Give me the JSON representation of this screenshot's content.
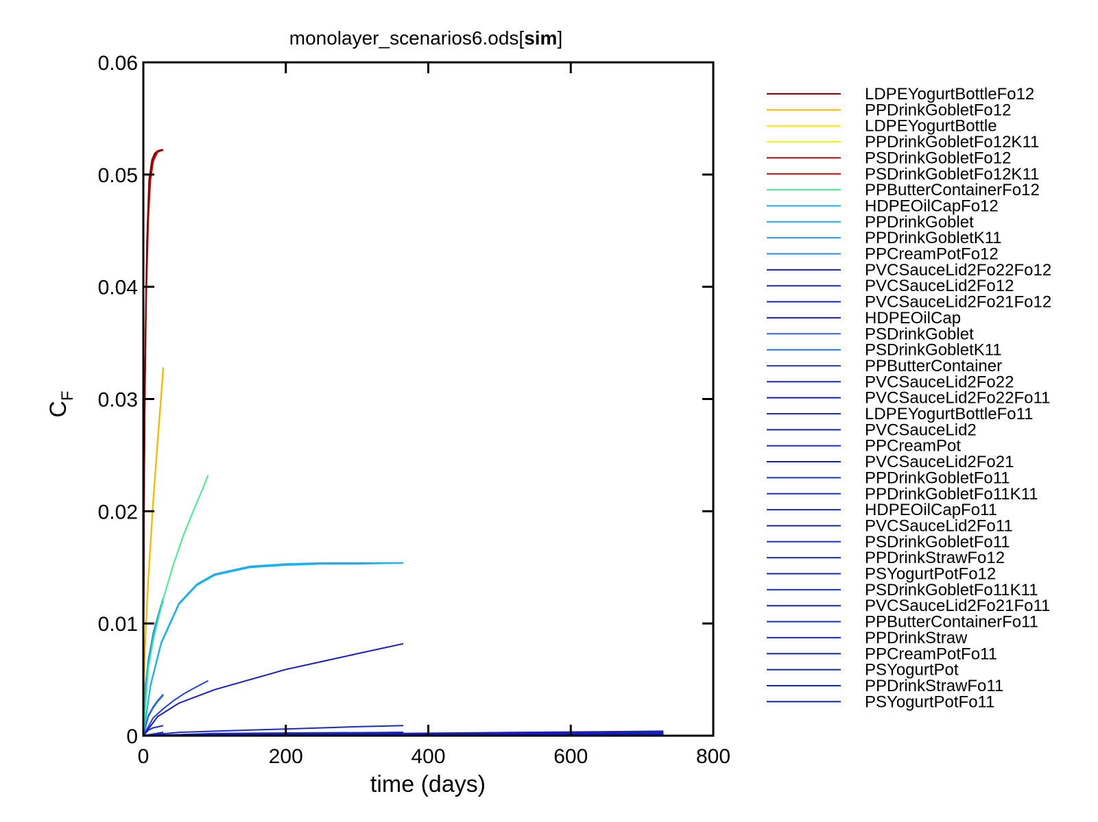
{
  "chart_data": {
    "type": "line",
    "title": "monolayer_scenarios6.ods",
    "title_suffix": "sim",
    "xlabel": "time (days)",
    "ylabel": "C",
    "ylabel_subscript": "F",
    "xlim": [
      0,
      800
    ],
    "ylim": [
      0,
      0.06
    ],
    "x_ticks": [
      0,
      200,
      400,
      600,
      800
    ],
    "x_tick_labels": [
      "0",
      "200",
      "400",
      "600",
      "800"
    ],
    "y_ticks": [
      0,
      0.01,
      0.02,
      0.03,
      0.04,
      0.05,
      0.06
    ],
    "y_tick_labels": [
      "0",
      "0.01",
      "0.02",
      "0.03",
      "0.04",
      "0.05",
      "0.06"
    ],
    "grid": false,
    "legend_position": "right",
    "series": [
      {
        "name": "LDPEYogurtBottleFo12",
        "color": "#8b0000",
        "x": [
          0,
          1,
          2,
          3,
          5,
          8,
          12,
          16,
          20,
          25,
          28
        ],
        "y": [
          0,
          0.02,
          0.029,
          0.036,
          0.044,
          0.0495,
          0.0513,
          0.0519,
          0.0521,
          0.0522,
          0.0522
        ]
      },
      {
        "name": "PPDrinkGobletFo12",
        "color": "#ffb000",
        "x": [
          0,
          1,
          3,
          7,
          14,
          21,
          28
        ],
        "y": [
          0,
          0.005,
          0.009,
          0.014,
          0.021,
          0.027,
          0.0328
        ]
      },
      {
        "name": "LDPEYogurtBottle",
        "color": "#ffe600",
        "x": [
          0,
          1,
          3,
          7,
          14,
          21,
          28
        ],
        "y": [
          0,
          0.005,
          0.009,
          0.014,
          0.021,
          0.027,
          0.0326
        ]
      },
      {
        "name": "PPDrinkGobletFo12K11",
        "color": "#f4f000",
        "x": [
          0,
          1,
          3,
          7,
          14,
          21,
          28
        ],
        "y": [
          0,
          0.0048,
          0.0088,
          0.0138,
          0.0208,
          0.0268,
          0.0324
        ]
      },
      {
        "name": "PSDrinkGobletFo12",
        "color": "#b00000",
        "x": [
          0,
          1,
          2,
          4,
          7,
          10,
          14,
          20,
          28
        ],
        "y": [
          0,
          0.02,
          0.03,
          0.04,
          0.047,
          0.05,
          0.0515,
          0.0521,
          0.0522
        ]
      },
      {
        "name": "PSDrinkGobletFo12K11",
        "color": "#d00000",
        "x": [
          0,
          1,
          2,
          4,
          7,
          10,
          14,
          20,
          28
        ],
        "y": [
          0,
          0.019,
          0.029,
          0.039,
          0.046,
          0.0495,
          0.0512,
          0.052,
          0.0522
        ]
      },
      {
        "name": "PPButterContainerFo12",
        "color": "#3cf08c",
        "x": [
          0,
          7,
          14,
          28,
          42,
          56,
          70,
          84,
          91
        ],
        "y": [
          0,
          0.006,
          0.0085,
          0.0122,
          0.0152,
          0.0178,
          0.02,
          0.0221,
          0.0232
        ]
      },
      {
        "name": "HDPEOilCapFo12",
        "color": "#18b4f0",
        "x": [
          0,
          10,
          25,
          50,
          75,
          100,
          150,
          200,
          250,
          300,
          365
        ],
        "y": [
          0,
          0.0045,
          0.0083,
          0.0118,
          0.0135,
          0.0144,
          0.0151,
          0.0153,
          0.0154,
          0.0154,
          0.0154
        ]
      },
      {
        "name": "PPDrinkGoblet",
        "color": "#20a8f0",
        "x": [
          0,
          10,
          25,
          50,
          75,
          100,
          150,
          200,
          250,
          300,
          365
        ],
        "y": [
          0,
          0.0044,
          0.0082,
          0.0117,
          0.0134,
          0.0143,
          0.015,
          0.0152,
          0.0153,
          0.0153,
          0.0154
        ]
      },
      {
        "name": "PPDrinkGobletK11",
        "color": "#2898ec",
        "x": [
          0,
          3,
          7,
          14,
          21,
          28
        ],
        "y": [
          0,
          0.0045,
          0.0068,
          0.0092,
          0.0108,
          0.0123
        ]
      },
      {
        "name": "PPCreamPotFo12",
        "color": "#2a8ae8",
        "x": [
          0,
          3,
          7,
          14,
          21,
          28
        ],
        "y": [
          0,
          0.0044,
          0.0066,
          0.009,
          0.0106,
          0.012
        ]
      },
      {
        "name": "PVCSauceLid2Fo22Fo12",
        "color": "#1818c8",
        "x": [
          0,
          730
        ],
        "y": [
          0,
          0.0002
        ]
      },
      {
        "name": "PVCSauceLid2Fo12",
        "color": "#1820c8",
        "x": [
          0,
          730
        ],
        "y": [
          0,
          0.0002
        ]
      },
      {
        "name": "PVCSauceLid2Fo21Fo12",
        "color": "#1020c0",
        "x": [
          0,
          730
        ],
        "y": [
          0,
          0.0002
        ]
      },
      {
        "name": "HDPEOilCap",
        "color": "#1818d0",
        "x": [
          0,
          20,
          50,
          100,
          150,
          200,
          250,
          300,
          365
        ],
        "y": [
          0,
          0.0017,
          0.0029,
          0.0041,
          0.005,
          0.0059,
          0.0066,
          0.0073,
          0.0082
        ]
      },
      {
        "name": "PSDrinkGoblet",
        "color": "#2468e8",
        "x": [
          0,
          7,
          14,
          21,
          28
        ],
        "y": [
          0,
          0.0018,
          0.0026,
          0.0032,
          0.0037
        ]
      },
      {
        "name": "PSDrinkGobletK11",
        "color": "#2070e8",
        "x": [
          0,
          7,
          14,
          21,
          28
        ],
        "y": [
          0,
          0.0017,
          0.0025,
          0.0031,
          0.0036
        ]
      },
      {
        "name": "PPButterContainer",
        "color": "#2040e0",
        "x": [
          0,
          14,
          28,
          42,
          56,
          70,
          91
        ],
        "y": [
          0,
          0.0016,
          0.0024,
          0.0031,
          0.0037,
          0.0042,
          0.0049
        ]
      },
      {
        "name": "PVCSauceLid2Fo22",
        "color": "#1820c8",
        "x": [
          0,
          730
        ],
        "y": [
          0,
          0.0003
        ]
      },
      {
        "name": "PVCSauceLid2Fo22Fo11",
        "color": "#1018c0",
        "x": [
          0,
          730
        ],
        "y": [
          0,
          0.0002
        ]
      },
      {
        "name": "LDPEYogurtBottleFo11",
        "color": "#1a28c8",
        "x": [
          0,
          7,
          14,
          21,
          28
        ],
        "y": [
          0,
          0.0005,
          0.0007,
          0.0008,
          0.0009
        ]
      },
      {
        "name": "PVCSauceLid2",
        "color": "#1020b8",
        "x": [
          0,
          730
        ],
        "y": [
          0,
          0.0004
        ]
      },
      {
        "name": "PPCreamPot",
        "color": "#1a2ac8",
        "x": [
          0,
          50,
          100,
          200,
          300,
          365
        ],
        "y": [
          0,
          0.0003,
          0.0004,
          0.0006,
          0.0008,
          0.0009
        ]
      },
      {
        "name": "PVCSauceLid2Fo21",
        "color": "#1020b8",
        "x": [
          0,
          730
        ],
        "y": [
          0,
          0.0003
        ]
      },
      {
        "name": "PPDrinkGobletFo11",
        "color": "#1a30d0",
        "x": [
          0,
          28
        ],
        "y": [
          0,
          0.0003
        ]
      },
      {
        "name": "PPDrinkGobletFo11K11",
        "color": "#1830d0",
        "x": [
          0,
          28
        ],
        "y": [
          0,
          0.0003
        ]
      },
      {
        "name": "HDPEOilCapFo11",
        "color": "#1428c8",
        "x": [
          0,
          100,
          365
        ],
        "y": [
          0,
          0.0002,
          0.0003
        ]
      },
      {
        "name": "PVCSauceLid2Fo11",
        "color": "#1020b0",
        "x": [
          0,
          730
        ],
        "y": [
          0,
          0.0001
        ]
      },
      {
        "name": "PSDrinkGobletFo11",
        "color": "#1430d0",
        "x": [
          0,
          28
        ],
        "y": [
          0,
          0.0002
        ]
      },
      {
        "name": "PPDrinkStrawFo12",
        "color": "#1828c8",
        "x": [
          0,
          28
        ],
        "y": [
          0,
          0.0001
        ]
      },
      {
        "name": "PSYogurtPotFo12",
        "color": "#1422c0",
        "x": [
          0,
          365
        ],
        "y": [
          0,
          0.0002
        ]
      },
      {
        "name": "PSDrinkGobletFo11K11",
        "color": "#1430d0",
        "x": [
          0,
          28
        ],
        "y": [
          0,
          0.0002
        ]
      },
      {
        "name": "PVCSauceLid2Fo21Fo11",
        "color": "#1020b0",
        "x": [
          0,
          730
        ],
        "y": [
          0,
          0.0001
        ]
      },
      {
        "name": "PPButterContainerFo11",
        "color": "#1428c8",
        "x": [
          0,
          91
        ],
        "y": [
          0,
          0.0001
        ]
      },
      {
        "name": "PPDrinkStraw",
        "color": "#1426c8",
        "x": [
          0,
          28
        ],
        "y": [
          0,
          0.0001
        ]
      },
      {
        "name": "PPCreamPotFo11",
        "color": "#1222c0",
        "x": [
          0,
          365
        ],
        "y": [
          0,
          0.0001
        ]
      },
      {
        "name": "PSYogurtPot",
        "color": "#1020b8",
        "x": [
          0,
          365
        ],
        "y": [
          0,
          0.0003
        ]
      },
      {
        "name": "PPDrinkStrawFo11",
        "color": "#1222c0",
        "x": [
          0,
          28
        ],
        "y": [
          0,
          5e-05
        ]
      },
      {
        "name": "PSYogurtPotFo11",
        "color": "#1020b8",
        "x": [
          0,
          365
        ],
        "y": [
          0,
          5e-05
        ]
      }
    ]
  }
}
